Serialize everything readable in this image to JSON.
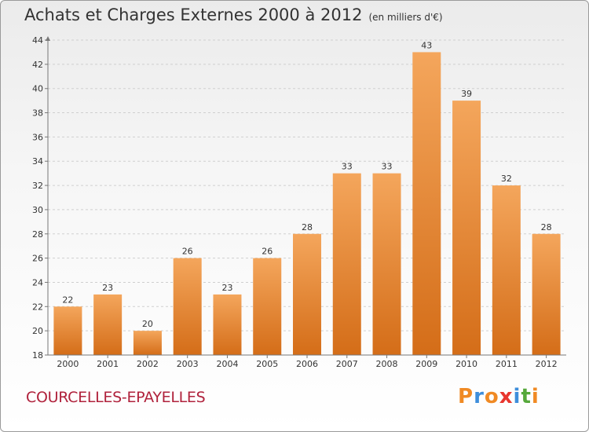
{
  "title": "Achats et Charges Externes 2000 à 2012",
  "subtitle": "(en milliers d'€)",
  "location": "COURCELLES-EPAYELLES",
  "brand": {
    "letters": [
      "P",
      "r",
      "o",
      "x",
      "i",
      "t",
      "i"
    ],
    "colors": [
      "#f08a24",
      "#3e8edb",
      "#f08a24",
      "#e8362e",
      "#3e8edb",
      "#56a83b",
      "#f08a24"
    ]
  },
  "colors": {
    "bar_top": "#f4a65c",
    "bar_bottom": "#d46d18",
    "axis": "#777777",
    "grid": "#cfcfcf",
    "text": "#333333"
  },
  "chart_data": {
    "type": "bar",
    "title": "Achats et Charges Externes 2000 à 2012",
    "subtitle": "(en milliers d'€)",
    "xlabel": "",
    "ylabel": "",
    "categories": [
      "2000",
      "2001",
      "2002",
      "2003",
      "2004",
      "2005",
      "2006",
      "2007",
      "2008",
      "2009",
      "2010",
      "2011",
      "2012"
    ],
    "values": [
      22,
      23,
      20,
      26,
      23,
      26,
      28,
      33,
      33,
      43,
      39,
      32,
      28
    ],
    "value_labels": [
      "22",
      "23",
      "20",
      "26",
      "23",
      "26",
      "28",
      "33",
      "33",
      "43",
      "39",
      "32",
      "28"
    ],
    "ylim": [
      18,
      44
    ],
    "yticks": [
      "18",
      "20",
      "22",
      "24",
      "26",
      "28",
      "30",
      "32",
      "34",
      "36",
      "38",
      "40",
      "42",
      "44"
    ],
    "grid": true,
    "legend": "none"
  }
}
